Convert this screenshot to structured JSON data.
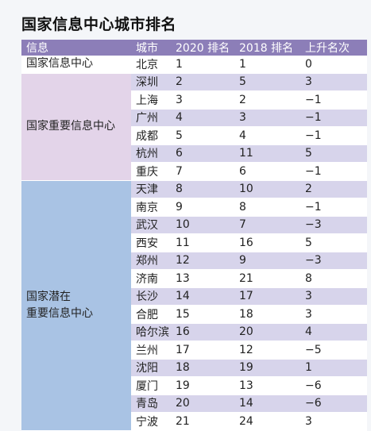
{
  "title": "国家信息中心城市排名",
  "table": {
    "header": [
      "信息",
      "城市",
      "2020 排名",
      "2018 排名",
      "上升名次"
    ],
    "groups": [
      {
        "label": "国家信息中心",
        "rows": [
          [
            "北京",
            "1",
            "1",
            "0"
          ]
        ]
      },
      {
        "label": "国家重要信息中心",
        "rows": [
          [
            "深圳",
            "2",
            "5",
            "3"
          ],
          [
            "上海",
            "3",
            "2",
            "−1"
          ],
          [
            "广州",
            "4",
            "3",
            "−1"
          ],
          [
            "成都",
            "5",
            "4",
            "−1"
          ],
          [
            "杭州",
            "6",
            "11",
            "5"
          ],
          [
            "重庆",
            "7",
            "6",
            "−1"
          ]
        ]
      },
      {
        "label": "国家潜在\n重要信息中心",
        "rows": [
          [
            "天津",
            "8",
            "10",
            "2"
          ],
          [
            "南京",
            "9",
            "8",
            "−1"
          ],
          [
            "武汉",
            "10",
            "7",
            "−3"
          ],
          [
            "西安",
            "11",
            "16",
            "5"
          ],
          [
            "郑州",
            "12",
            "9",
            "−3"
          ],
          [
            "济南",
            "13",
            "21",
            "8"
          ],
          [
            "长沙",
            "14",
            "17",
            "3"
          ],
          [
            "合肥",
            "15",
            "18",
            "3"
          ],
          [
            "哈尔滨",
            "16",
            "20",
            "4"
          ],
          [
            "兰州",
            "17",
            "12",
            "−5"
          ],
          [
            "沈阳",
            "18",
            "19",
            "1"
          ],
          [
            "厦门",
            "19",
            "13",
            "−6"
          ],
          [
            "青岛",
            "20",
            "14",
            "−6"
          ],
          [
            "宁波",
            "21",
            "24",
            "3"
          ]
        ]
      }
    ]
  }
}
